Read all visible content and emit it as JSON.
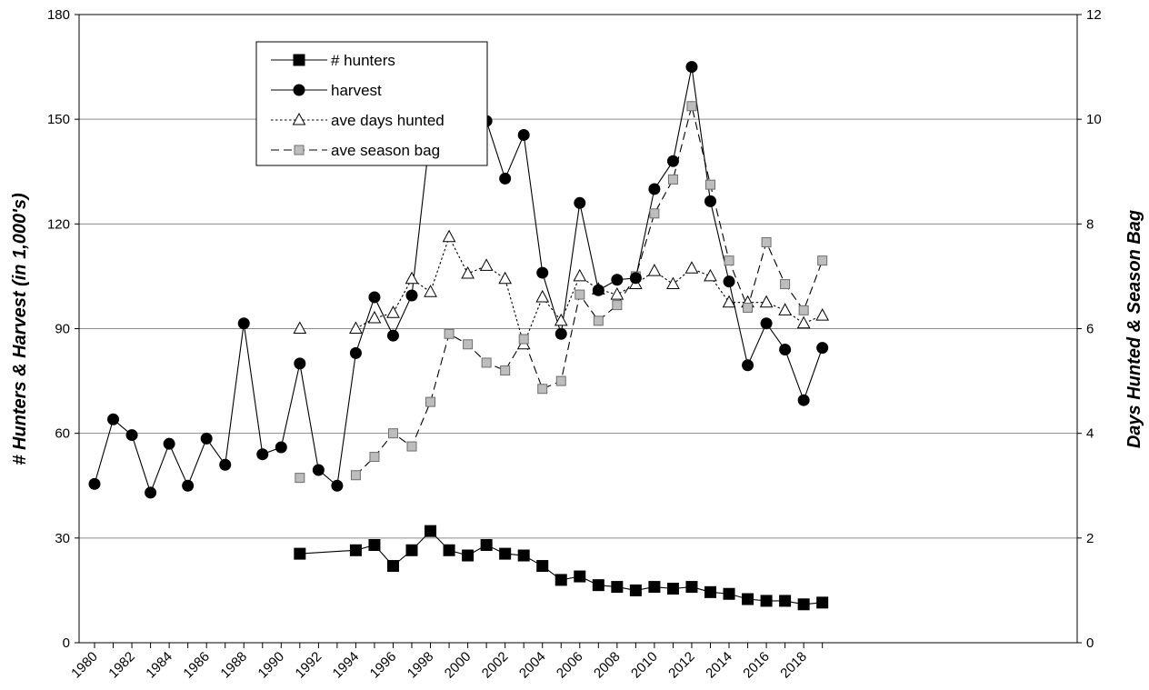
{
  "chart_data": {
    "type": "line",
    "title": "",
    "xlabel": "",
    "ylabel": "# Hunters & Harvest (in 1,000's)",
    "y2label": "Days Hunted & Season Bag",
    "xlim": [
      1980,
      2019
    ],
    "ylim": [
      0,
      180
    ],
    "y2lim": [
      0,
      12
    ],
    "yticks": [
      "0",
      "30",
      "60",
      "90",
      "120",
      "150",
      "180"
    ],
    "y2ticks": [
      "0",
      "2",
      "4",
      "6",
      "8",
      "10",
      "12"
    ],
    "xticks": [
      "1980",
      "1982",
      "1984",
      "1986",
      "1988",
      "1990",
      "1992",
      "1994",
      "1996",
      "1998",
      "2000",
      "2002",
      "2004",
      "2006",
      "2008",
      "2010",
      "2012",
      "2014",
      "2016",
      "2018"
    ],
    "grid": "horizontal",
    "legend_position": "top-left",
    "series": [
      {
        "name": "# hunters",
        "axis": "left",
        "marker": "square-filled",
        "line": "solid",
        "x": [
          1991,
          1994,
          1995,
          1996,
          1997,
          1998,
          1999,
          2000,
          2001,
          2002,
          2003,
          2004,
          2005,
          2006,
          2007,
          2008,
          2009,
          2010,
          2011,
          2012,
          2013,
          2014,
          2015,
          2016,
          2017,
          2018,
          2019
        ],
        "values": [
          25.5,
          26.5,
          28,
          22,
          26.5,
          32,
          26.5,
          25,
          28,
          25.5,
          25,
          22,
          18,
          19,
          16.5,
          16,
          15,
          16,
          15.5,
          16,
          14.5,
          14,
          12.5,
          12,
          12,
          11,
          11.5
        ]
      },
      {
        "name": "harvest",
        "axis": "left",
        "marker": "circle-filled",
        "line": "solid",
        "x": [
          1980,
          1981,
          1982,
          1983,
          1984,
          1985,
          1986,
          1987,
          1988,
          1989,
          1990,
          1991,
          1992,
          1993,
          1994,
          1995,
          1996,
          1997,
          1998,
          1999,
          2000,
          2001,
          2002,
          2003,
          2004,
          2005,
          2006,
          2007,
          2008,
          2009,
          2010,
          2011,
          2012,
          2013,
          2014,
          2015,
          2016,
          2017,
          2018,
          2019
        ],
        "values": [
          45.5,
          64,
          59.5,
          43,
          57,
          45,
          58.5,
          51,
          91.5,
          54,
          56,
          80,
          49.5,
          45,
          83,
          99,
          88,
          99.5,
          146.5,
          154,
          140,
          149.5,
          133,
          145.5,
          106,
          88.5,
          126,
          101,
          104,
          104.5,
          130,
          138,
          165,
          126.5,
          103.5,
          79.5,
          91.5,
          84,
          69.5,
          84.5
        ]
      },
      {
        "name": "ave days hunted",
        "axis": "right",
        "marker": "triangle-open",
        "line": "dotted",
        "x": [
          1991,
          null,
          1994,
          1995,
          1996,
          1997,
          1998,
          1999,
          2000,
          2001,
          2002,
          2003,
          2004,
          2005,
          2006,
          2007,
          2008,
          2009,
          2010,
          2011,
          2012,
          2013,
          2014,
          2015,
          2016,
          2017,
          2018,
          2019
        ],
        "values": [
          6.0,
          null,
          6.0,
          6.2,
          6.3,
          6.95,
          6.7,
          7.75,
          7.05,
          7.2,
          6.95,
          5.7,
          6.6,
          6.15,
          7.0,
          6.75,
          6.65,
          6.85,
          7.1,
          6.85,
          7.15,
          7.0,
          6.5,
          6.5,
          6.5,
          6.35,
          6.1,
          6.25
        ]
      },
      {
        "name": "ave season bag",
        "axis": "right",
        "marker": "square-gray",
        "line": "dashed",
        "x": [
          1991,
          null,
          1994,
          1995,
          1996,
          1997,
          1998,
          1999,
          2000,
          2001,
          2002,
          2003,
          2004,
          2005,
          2006,
          2007,
          2008,
          2009,
          2010,
          2011,
          2012,
          2013,
          2014,
          2015,
          2016,
          2017,
          2018,
          2019
        ],
        "values": [
          3.15,
          null,
          3.2,
          3.55,
          4.0,
          3.75,
          4.6,
          5.9,
          5.7,
          5.35,
          5.2,
          5.8,
          4.85,
          5.0,
          6.65,
          6.15,
          6.45,
          7.0,
          8.2,
          8.85,
          10.25,
          8.75,
          7.3,
          6.4,
          7.65,
          6.85,
          6.35,
          7.3
        ]
      }
    ]
  }
}
